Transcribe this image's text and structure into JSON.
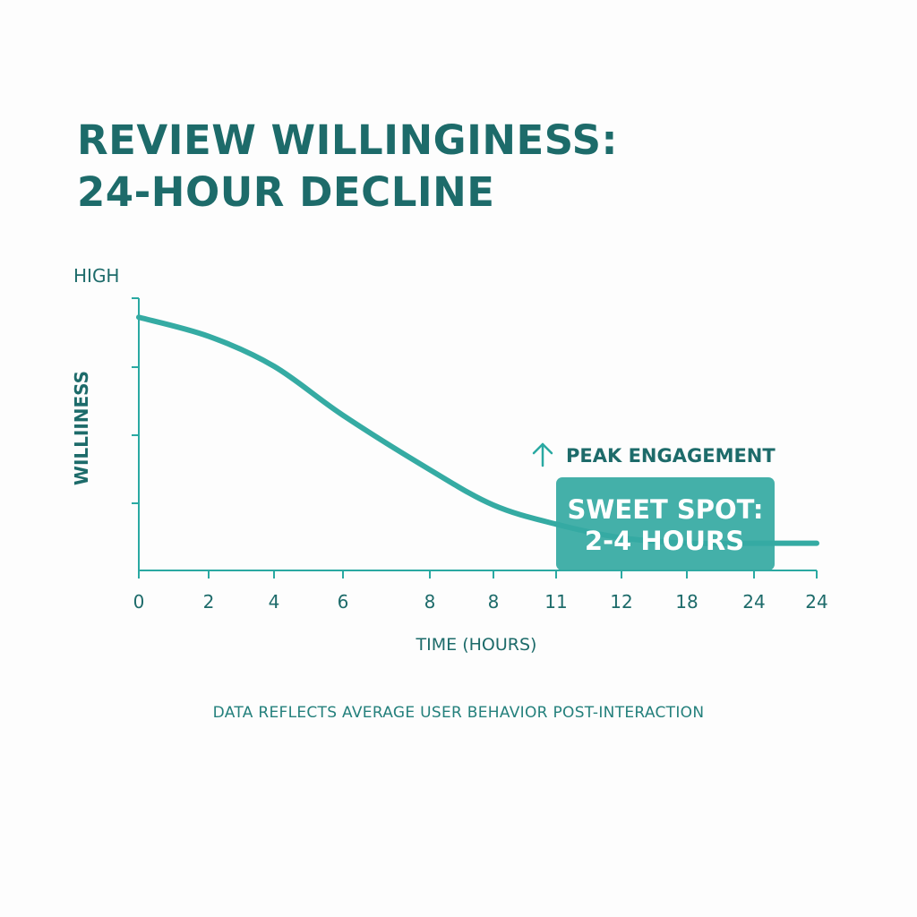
{
  "title_lines": [
    "REVIEW WILLINGINESS:",
    "24-HOUR DECLINE"
  ],
  "footnote": "DATA REFLECTS AVERAGE USER BEHAVIOR POST-INTERACTION",
  "colors": {
    "title": "#1d6b6a",
    "axis": "#2aa9a2",
    "line": "#35aba3",
    "callout_bg": "#36aaa3",
    "callout_text": "#ffffff",
    "label": "#1d6b6a"
  },
  "chart_data": {
    "type": "line",
    "title": "REVIEW WILLINGINESS: 24-HOUR DECLINE",
    "xlabel": "TIME (HOURS)",
    "ylabel": "WILLIINESS",
    "y_top_label": "HIGH",
    "x_tick_labels": [
      "0",
      "2",
      "4",
      "6",
      "8",
      "8",
      "11",
      "12",
      "18",
      "24",
      "24"
    ],
    "ylim": [
      0,
      1
    ],
    "series": [
      {
        "x_tick_index": [
          0,
          1,
          2,
          3,
          4,
          5,
          6,
          7,
          8,
          9,
          10
        ],
        "values": [
          0.93,
          0.86,
          0.75,
          0.57,
          0.37,
          0.24,
          0.17,
          0.12,
          0.1,
          0.1,
          0.1
        ]
      }
    ],
    "annotations": {
      "peak_label": "PEAK ENGAGEMENT",
      "peak_icon": "arrow-up-icon",
      "callout_lines": [
        "SWEET SPOT:",
        "2-4 HOURS"
      ]
    },
    "grid": false,
    "legend": "none"
  }
}
